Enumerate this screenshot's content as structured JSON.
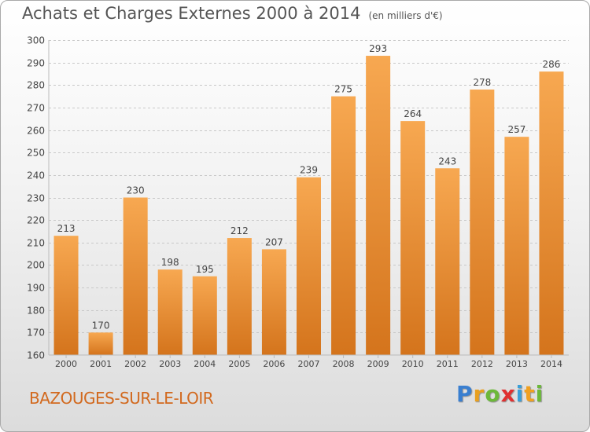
{
  "title": "Achats et Charges Externes 2000 à 2014",
  "subtitle": "(en milliers d'€)",
  "commune": "BAZOUGES-SUR-LE-LOIR",
  "logo": {
    "p": "P",
    "r": "r",
    "o": "o",
    "x": "x",
    "i1": "i",
    "t": "t",
    "i2": "i"
  },
  "colors": {
    "bar_light": "#f7a851",
    "bar_dark": "#d4741c",
    "commune": "#d2691e"
  },
  "chart_data": {
    "type": "bar",
    "categories": [
      "2000",
      "2001",
      "2002",
      "2003",
      "2004",
      "2005",
      "2006",
      "2007",
      "2008",
      "2009",
      "2010",
      "2011",
      "2012",
      "2013",
      "2014"
    ],
    "values": [
      213,
      170,
      230,
      198,
      195,
      212,
      207,
      239,
      275,
      293,
      264,
      243,
      278,
      257,
      286
    ],
    "yticks": [
      160,
      170,
      180,
      190,
      200,
      210,
      220,
      230,
      240,
      250,
      260,
      270,
      280,
      290,
      300
    ],
    "ylim": [
      160,
      300
    ],
    "grid": true,
    "legend": "none"
  }
}
